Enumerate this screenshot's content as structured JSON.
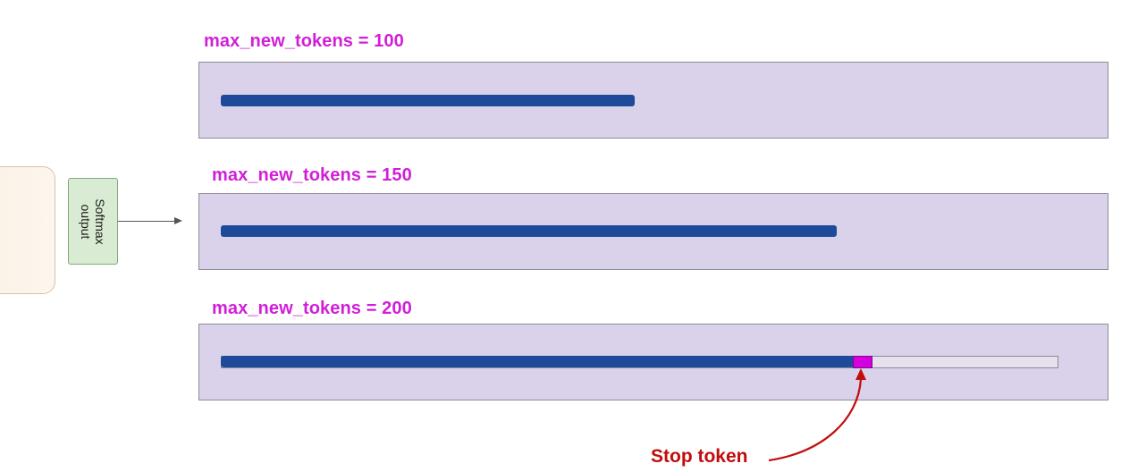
{
  "left_diagram": {
    "softmax_label": "Softmax\noutput"
  },
  "scenarios": [
    {
      "label": "max_new_tokens = 100",
      "fill": 0.494,
      "stop_token": false
    },
    {
      "label": "max_new_tokens = 150",
      "fill": 0.735,
      "stop_token": false
    },
    {
      "label": "max_new_tokens = 200",
      "fill": 0.755,
      "stop_token": true
    }
  ],
  "annotation": {
    "stop_label": "Stop token",
    "color": "#c20d0d"
  },
  "colors": {
    "label": "#d11ed8",
    "panel": "#dad2ea",
    "token_bar": "#1f4a9a",
    "stop_token": "#d400dd"
  }
}
